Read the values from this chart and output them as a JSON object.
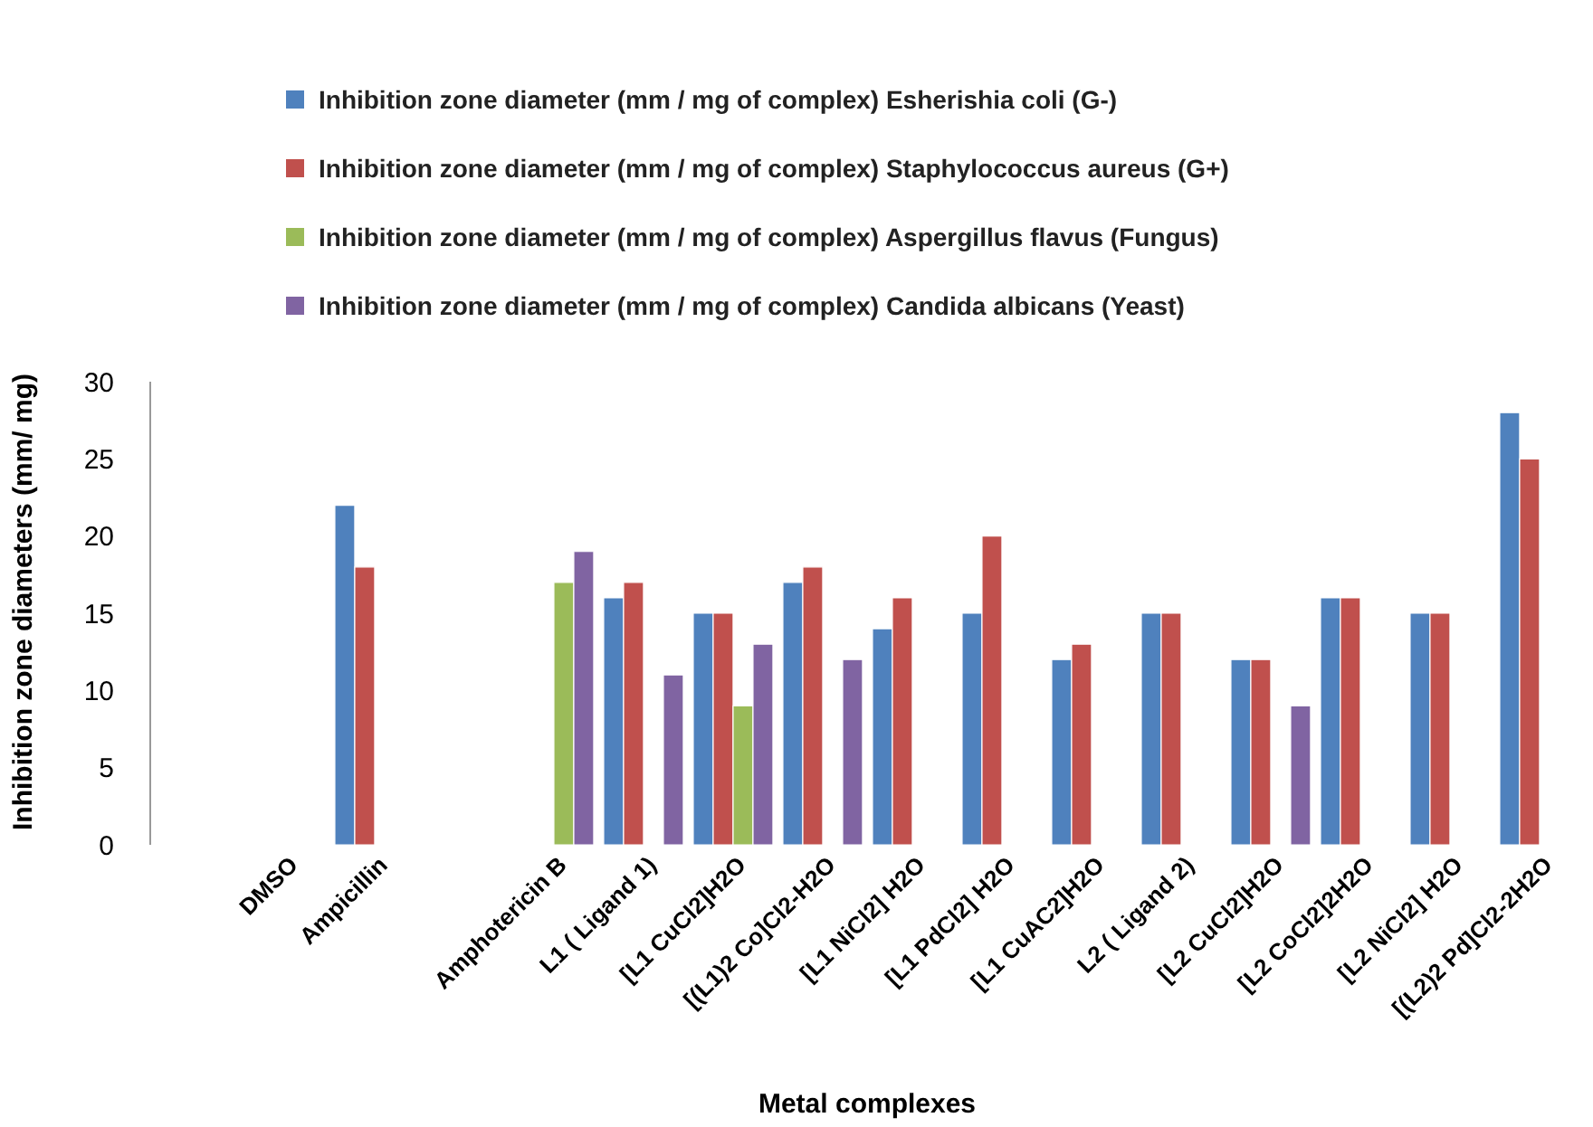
{
  "chart_data": {
    "type": "bar",
    "xlabel": "Metal complexes",
    "ylabel": "Inhibition zone diameters (mm/ mg)",
    "categories": [
      null,
      "DMSO",
      "Ampicillin",
      null,
      "Amphotericin B",
      "L1 ( Ligand 1)",
      "[L1 CuCl2]H2O",
      "[(L1)2 Co]Cl2-H2O",
      "[L1 NiCl2] H2O",
      "[L1 PdCl2] H2O",
      "[L1 CuAC2]H2O",
      "L2 ( Ligand 2)",
      "[L2 CuCl2]H2O",
      "[L2 CoCl2]2H2O",
      "[L2 NiCl2] H2O",
      "[(L2)2 Pd]Cl2-2H2O"
    ],
    "series": [
      {
        "name": "Inhibition zone diameter (mm / mg of complex) Esherishia coli (G-)",
        "color": "#4f81bd",
        "values": [
          null,
          null,
          22,
          null,
          null,
          16,
          15,
          17,
          14,
          15,
          12,
          15,
          12,
          16,
          15,
          28
        ]
      },
      {
        "name": "Inhibition zone diameter (mm / mg of complex) Staphylococcus aureus (G+)",
        "color": "#c0504d",
        "values": [
          null,
          null,
          18,
          null,
          null,
          17,
          15,
          18,
          16,
          20,
          13,
          15,
          12,
          16,
          15,
          25
        ]
      },
      {
        "name": "Inhibition zone diameter (mm / mg of complex) Aspergillus flavus  (Fungus)",
        "color": "#9bbb59",
        "values": [
          null,
          null,
          null,
          null,
          17,
          null,
          9,
          null,
          null,
          null,
          null,
          null,
          null,
          null,
          null,
          null
        ]
      },
      {
        "name": "Inhibition zone diameter (mm / mg of complex) Candida albicans  (Yeast)",
        "color": "#8064a2",
        "values": [
          null,
          null,
          null,
          null,
          19,
          11,
          13,
          12,
          null,
          null,
          null,
          null,
          9,
          null,
          null,
          null
        ]
      }
    ],
    "ylim": [
      0,
      30
    ],
    "yticks": [
      0,
      5,
      10,
      15,
      20,
      25,
      30
    ],
    "grid": false,
    "legend": "top"
  }
}
